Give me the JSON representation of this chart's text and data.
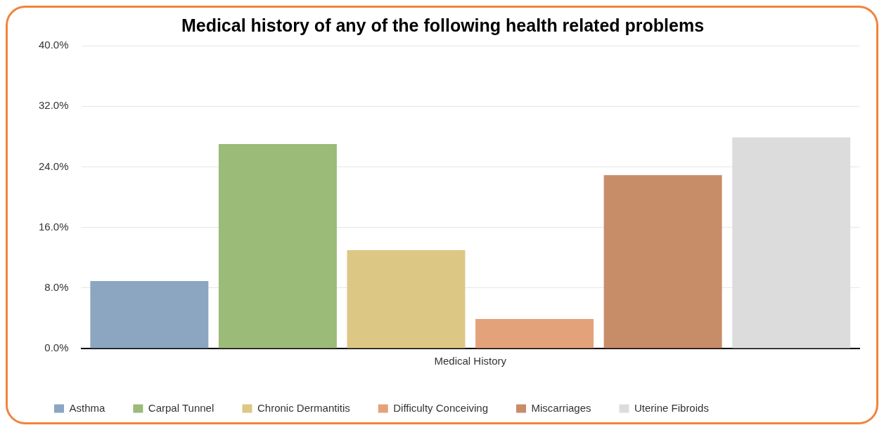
{
  "chart_data": {
    "type": "bar",
    "title": "Medical history of any of the following health related problems",
    "categories": [
      "Medical History"
    ],
    "series": [
      {
        "name": "Asthma",
        "color": "#8ca5c1",
        "values": [
          8.9
        ]
      },
      {
        "name": "Carpal Tunnel",
        "color": "#9bbb78",
        "values": [
          27.0
        ]
      },
      {
        "name": "Chronic Dermantitis",
        "color": "#dcc785",
        "values": [
          13.0
        ]
      },
      {
        "name": "Difficulty Conceiving",
        "color": "#e4a27a",
        "values": [
          3.9
        ]
      },
      {
        "name": "Miscarriages",
        "color": "#c78c68",
        "values": [
          22.9
        ]
      },
      {
        "name": "Uterine Fibroids",
        "color": "#dcdcdc",
        "values": [
          27.9
        ]
      }
    ],
    "ylim": [
      0,
      40
    ],
    "yticks": [
      {
        "value": 0,
        "label": "0.0%"
      },
      {
        "value": 8,
        "label": "8.0%"
      },
      {
        "value": 16,
        "label": "16.0%"
      },
      {
        "value": 24,
        "label": "24.0%"
      },
      {
        "value": 32,
        "label": "32.0%"
      },
      {
        "value": 40,
        "label": "40.0%"
      }
    ],
    "grid": "y",
    "legend": "bottom"
  }
}
